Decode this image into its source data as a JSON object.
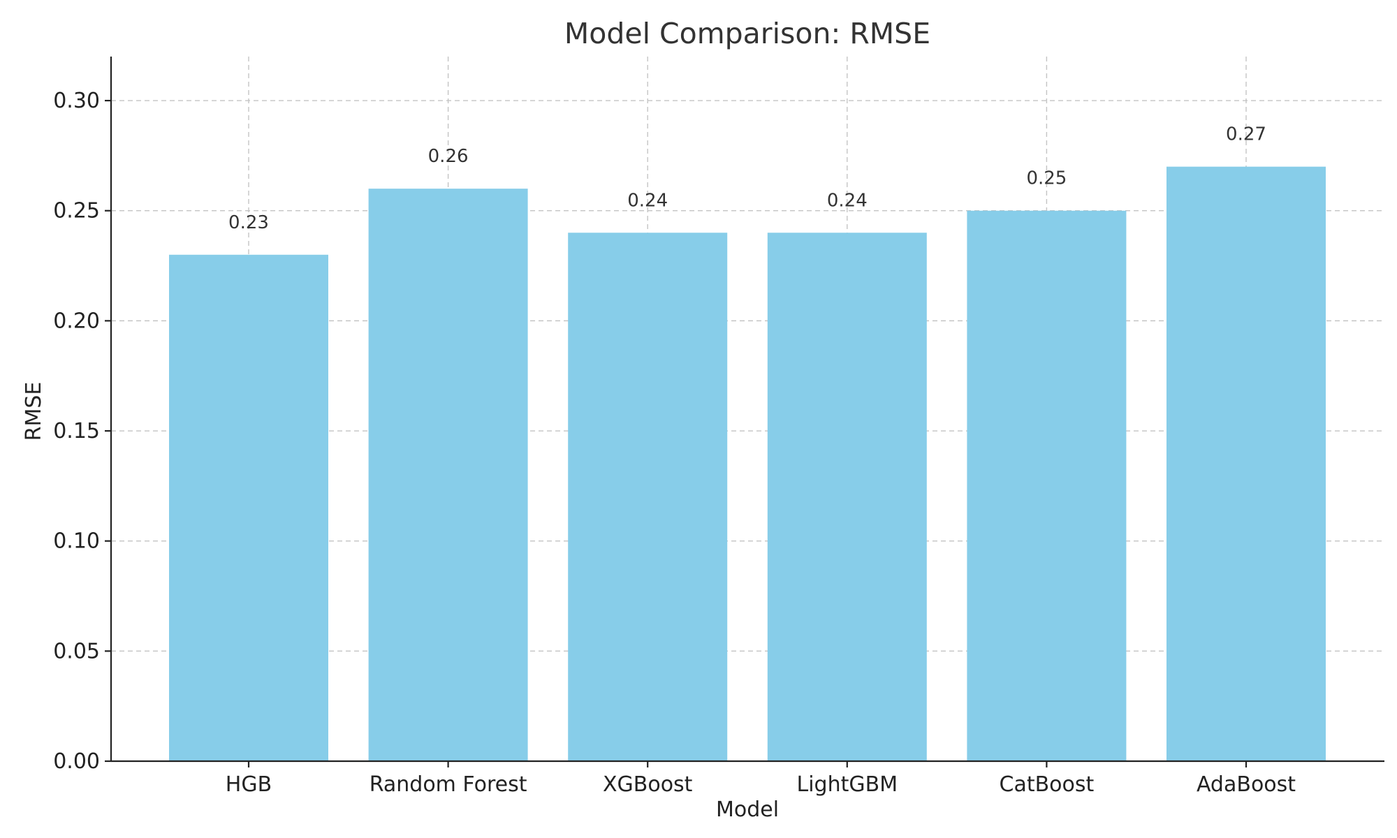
{
  "chart_data": {
    "type": "bar",
    "title": "Model Comparison: RMSE",
    "xlabel": "Model",
    "ylabel": "RMSE",
    "categories": [
      "HGB",
      "Random Forest",
      "XGBoost",
      "LightGBM",
      "CatBoost",
      "AdaBoost"
    ],
    "values": [
      0.23,
      0.26,
      0.24,
      0.24,
      0.25,
      0.27
    ],
    "data_labels": [
      "0.23",
      "0.26",
      "0.24",
      "0.24",
      "0.25",
      "0.27"
    ],
    "ylim": [
      0,
      0.32
    ],
    "yticks": [
      0.0,
      0.05,
      0.1,
      0.15,
      0.2,
      0.25,
      0.3
    ],
    "ytick_labels": [
      "0.00",
      "0.05",
      "0.10",
      "0.15",
      "0.20",
      "0.25",
      "0.30"
    ],
    "grid": true,
    "bar_color": "#87CDE9",
    "grid_color": "#c4c4c4",
    "axis_color": "#222222"
  }
}
